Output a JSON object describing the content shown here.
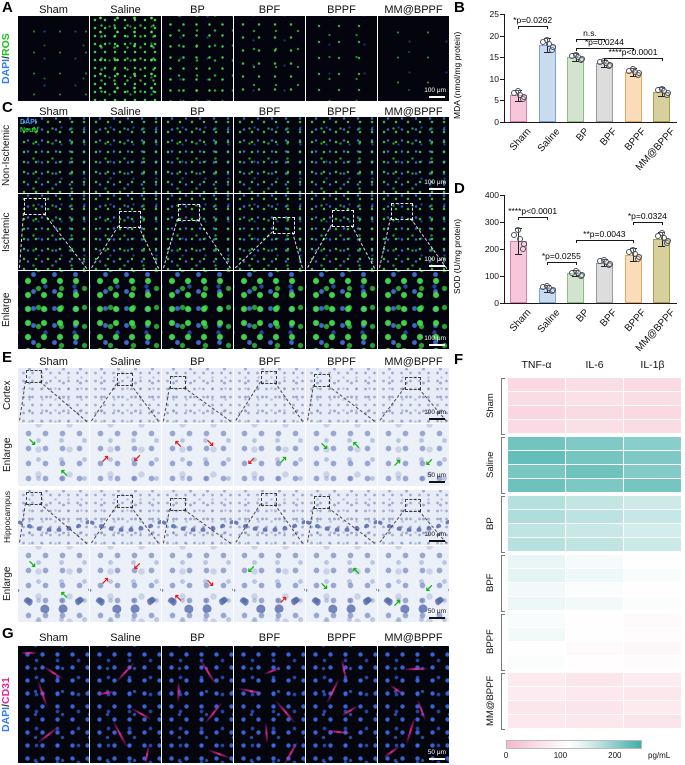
{
  "letters": {
    "A": "A",
    "B": "B",
    "C": "C",
    "D": "D",
    "E": "E",
    "F": "F",
    "G": "G"
  },
  "conditions": [
    "Sham",
    "Saline",
    "BP",
    "BPF",
    "BPPF",
    "MM@BPPF"
  ],
  "stains": {
    "A": {
      "blue": "DAPI",
      "sep": "/",
      "green": "ROS"
    },
    "C": {
      "blue": "DAPI",
      "green": "NeuN"
    },
    "G": {
      "blue": "DAPI",
      "sep": "/",
      "magenta": "CD31"
    }
  },
  "row_labels": {
    "C": [
      "Non-Ischemic",
      "Ischemic",
      "Enlarge"
    ],
    "E": [
      "Cortex",
      "Enlarge",
      "Hippocampus",
      "Enlarge"
    ]
  },
  "scale_bars": {
    "A": "100 μm",
    "C": [
      "100 μm",
      "100 μm",
      "100 μm"
    ],
    "E": [
      "100 μm",
      "50 μm",
      "100 μm",
      "50 μm"
    ],
    "G": "50 μm"
  },
  "chart_data": [
    {
      "id": "B",
      "type": "bar",
      "ylabel": "MDA (nmol/mg protein)",
      "categories": [
        "Sham",
        "Saline",
        "BP",
        "BPF",
        "BPPF",
        "MM@BPPF"
      ],
      "values": [
        6.2,
        17.8,
        15.0,
        13.6,
        11.6,
        7.0
      ],
      "errors": [
        1.3,
        1.6,
        0.9,
        0.8,
        0.9,
        1.0
      ],
      "ylim": [
        0,
        25
      ],
      "yticks": [
        0,
        5,
        10,
        15,
        20,
        25
      ],
      "annotations": [
        {
          "text": "*p=0.0262",
          "from": 0,
          "to": 1,
          "level": 22.2
        },
        {
          "text": "n.s.",
          "from": 2,
          "to": 3,
          "level": 19.3
        },
        {
          "text": "*p=0.0244",
          "from": 2,
          "to": 4,
          "level": 17.2
        },
        {
          "text": "****p<0.0001",
          "from": 3,
          "to": 5,
          "level": 14.9
        }
      ]
    },
    {
      "id": "D",
      "type": "bar",
      "ylabel": "SOD (U/mg protein)",
      "categories": [
        "Sham",
        "Saline",
        "BP",
        "BPF",
        "BPPF",
        "MM@BPPF"
      ],
      "values": [
        228,
        55,
        110,
        150,
        178,
        238
      ],
      "errors": [
        48,
        13,
        11,
        14,
        24,
        26
      ],
      "ylim": [
        0,
        400
      ],
      "yticks": [
        0,
        100,
        200,
        300,
        400
      ],
      "annotations": [
        {
          "text": "****p<0.0001",
          "from": 0,
          "to": 1,
          "level": 318
        },
        {
          "text": "*p=0.0255",
          "from": 1,
          "to": 2,
          "level": 152
        },
        {
          "text": "**p=0.0043",
          "from": 2,
          "to": 4,
          "level": 232
        },
        {
          "text": "*p=0.0324",
          "from": 4,
          "to": 5,
          "level": 300
        }
      ]
    },
    {
      "id": "F",
      "type": "heatmap",
      "columns": [
        "TNF-α",
        "IL-6",
        "IL-1β"
      ],
      "unit": "pg/mL",
      "scale": {
        "min": 0,
        "max": 250,
        "mid": 115,
        "ticks": [
          0,
          100,
          200
        ]
      },
      "groups": [
        {
          "name": "Sham",
          "rows": [
            [
              52,
              60,
              56
            ],
            [
              58,
              64,
              60
            ],
            [
              48,
              56,
              52
            ],
            [
              55,
              62,
              58
            ]
          ]
        },
        {
          "name": "Saline",
          "rows": [
            [
              215,
              205,
              198
            ],
            [
              224,
              212,
              206
            ],
            [
              210,
              216,
              202
            ],
            [
              218,
              208,
              212
            ]
          ]
        },
        {
          "name": "BP",
          "rows": [
            [
              168,
              158,
              150
            ],
            [
              172,
              162,
              156
            ],
            [
              160,
              154,
              146
            ],
            [
              166,
              160,
              152
            ]
          ]
        },
        {
          "name": "BPF",
          "rows": [
            [
              130,
              122,
              116
            ],
            [
              134,
              126,
              120
            ],
            [
              124,
              118,
              112
            ],
            [
              128,
              124,
              118
            ]
          ]
        },
        {
          "name": "BPPF",
          "rows": [
            [
              120,
              112,
              106
            ],
            [
              124,
              116,
              110
            ],
            [
              114,
              106,
              102
            ],
            [
              118,
              112,
              108
            ]
          ]
        },
        {
          "name": "MM@BPPF",
          "rows": [
            [
              80,
              74,
              82
            ],
            [
              84,
              78,
              76
            ],
            [
              74,
              70,
              80
            ],
            [
              78,
              76,
              72
            ]
          ]
        }
      ]
    }
  ],
  "colors": {
    "bar_fill": [
      "#f6c7db",
      "#c9dcef",
      "#d2e4cd",
      "#dddddd",
      "#f9dcba",
      "#d8d09c"
    ],
    "bar_stroke": [
      "#e27db2",
      "#78a7d4",
      "#8cbd87",
      "#999999",
      "#e7a75f",
      "#a89e4e"
    ],
    "dapi_blue": "#2f7bff",
    "green_signal": "#19c419",
    "cd31_magenta": "#e8219c",
    "arrow_red": "#e01f1a",
    "arrow_green": "#0db50d",
    "heat_low": "#f5b9cb",
    "heat_mid": "#ffffff",
    "heat_high": "#3fafa9"
  }
}
